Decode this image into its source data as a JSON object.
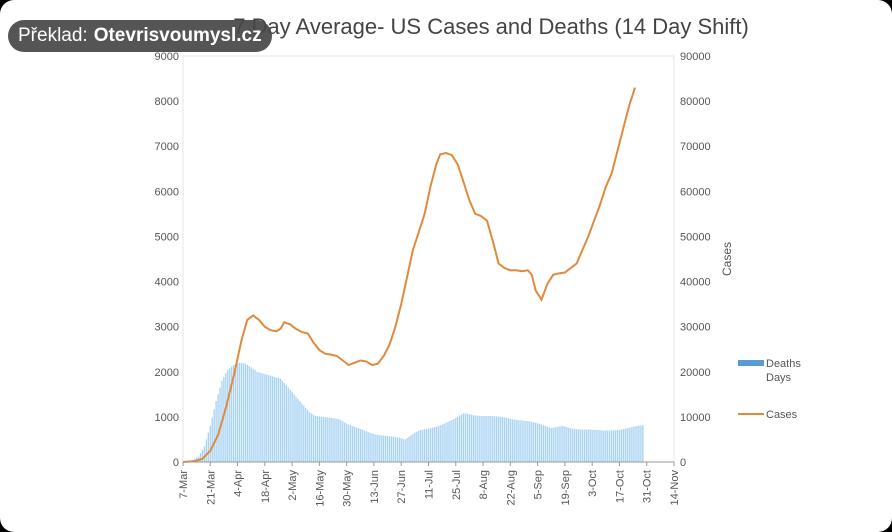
{
  "overlay": {
    "prefix": "Překlad:",
    "site": "Otevrisvoumysl.cz"
  },
  "colors": {
    "cases_line": "#e08a3c",
    "deaths_bars": "#a9d3f2",
    "legend_deaths": "#5b9bd5",
    "grid": "#dddddd"
  },
  "chart_data": {
    "type": "bar+line",
    "title": "7 Day Average- US Cases and Deaths (14 Day Shift)",
    "y_left": {
      "min": 0,
      "max": 9000,
      "step": 1000,
      "ticks": [
        "0",
        "1000",
        "2000",
        "3000",
        "4000",
        "5000",
        "6000",
        "7000",
        "8000",
        "9000"
      ]
    },
    "y_right": {
      "label": "Cases",
      "min": 0,
      "max": 90000,
      "step": 10000,
      "ticks": [
        "0",
        "10000",
        "20000",
        "30000",
        "40000",
        "50000",
        "60000",
        "70000",
        "80000",
        "90000"
      ]
    },
    "x_ticks": [
      "7-Mar",
      "21-Mar",
      "4-Apr",
      "18-Apr",
      "2-May",
      "16-May",
      "30-May",
      "13-Jun",
      "27-Jun",
      "11-Jul",
      "25-Jul",
      "8-Aug",
      "22-Aug",
      "5-Sep",
      "19-Sep",
      "3-Oct",
      "17-Oct",
      "31-Oct",
      "14-Nov"
    ],
    "x_range_days": [
      0,
      252
    ],
    "legend": [
      {
        "label": "Deaths",
        "sub": "Days",
        "kind": "bar"
      },
      {
        "label": "Cases",
        "kind": "line"
      }
    ],
    "series": [
      {
        "name": "Deaths",
        "axis": "left",
        "kind": "bar",
        "points": [
          [
            0,
            5
          ],
          [
            4,
            20
          ],
          [
            8,
            120
          ],
          [
            11,
            350
          ],
          [
            14,
            800
          ],
          [
            17,
            1350
          ],
          [
            20,
            1800
          ],
          [
            23,
            2050
          ],
          [
            26,
            2150
          ],
          [
            29,
            2200
          ],
          [
            32,
            2180
          ],
          [
            35,
            2100
          ],
          [
            38,
            2000
          ],
          [
            42,
            1950
          ],
          [
            46,
            1900
          ],
          [
            50,
            1850
          ],
          [
            53,
            1700
          ],
          [
            56,
            1550
          ],
          [
            59,
            1400
          ],
          [
            62,
            1250
          ],
          [
            65,
            1100
          ],
          [
            68,
            1020
          ],
          [
            72,
            1000
          ],
          [
            76,
            980
          ],
          [
            80,
            950
          ],
          [
            84,
            850
          ],
          [
            88,
            780
          ],
          [
            92,
            720
          ],
          [
            96,
            650
          ],
          [
            100,
            600
          ],
          [
            104,
            580
          ],
          [
            108,
            560
          ],
          [
            111,
            540
          ],
          [
            114,
            500
          ],
          [
            116,
            560
          ],
          [
            119,
            650
          ],
          [
            122,
            710
          ],
          [
            126,
            740
          ],
          [
            130,
            780
          ],
          [
            134,
            850
          ],
          [
            138,
            930
          ],
          [
            141,
            1000
          ],
          [
            144,
            1080
          ],
          [
            147,
            1060
          ],
          [
            150,
            1030
          ],
          [
            154,
            1020
          ],
          [
            158,
            1020
          ],
          [
            162,
            1010
          ],
          [
            166,
            980
          ],
          [
            170,
            940
          ],
          [
            174,
            920
          ],
          [
            178,
            900
          ],
          [
            182,
            860
          ],
          [
            186,
            800
          ],
          [
            189,
            750
          ],
          [
            192,
            780
          ],
          [
            195,
            800
          ],
          [
            198,
            760
          ],
          [
            201,
            730
          ],
          [
            204,
            720
          ],
          [
            208,
            720
          ],
          [
            212,
            710
          ],
          [
            216,
            700
          ],
          [
            220,
            700
          ],
          [
            224,
            710
          ],
          [
            228,
            750
          ],
          [
            232,
            790
          ],
          [
            236,
            820
          ]
        ]
      },
      {
        "name": "Cases",
        "axis": "right",
        "kind": "line",
        "points": [
          [
            0,
            0
          ],
          [
            6,
            200
          ],
          [
            10,
            700
          ],
          [
            14,
            2500
          ],
          [
            18,
            6000
          ],
          [
            22,
            12000
          ],
          [
            26,
            19000
          ],
          [
            30,
            27000
          ],
          [
            33,
            31500
          ],
          [
            36,
            32500
          ],
          [
            39,
            31500
          ],
          [
            42,
            30000
          ],
          [
            45,
            29200
          ],
          [
            48,
            29000
          ],
          [
            50,
            29500
          ],
          [
            52,
            31000
          ],
          [
            55,
            30500
          ],
          [
            58,
            29500
          ],
          [
            61,
            28800
          ],
          [
            64,
            28500
          ],
          [
            67,
            26500
          ],
          [
            70,
            24800
          ],
          [
            73,
            24000
          ],
          [
            76,
            23800
          ],
          [
            79,
            23500
          ],
          [
            82,
            22500
          ],
          [
            85,
            21500
          ],
          [
            88,
            22000
          ],
          [
            91,
            22500
          ],
          [
            94,
            22300
          ],
          [
            97,
            21500
          ],
          [
            100,
            21800
          ],
          [
            103,
            23500
          ],
          [
            106,
            26000
          ],
          [
            109,
            30000
          ],
          [
            112,
            35000
          ],
          [
            115,
            41000
          ],
          [
            118,
            47000
          ],
          [
            121,
            51000
          ],
          [
            124,
            55000
          ],
          [
            127,
            61000
          ],
          [
            130,
            66000
          ],
          [
            132,
            68200
          ],
          [
            135,
            68500
          ],
          [
            138,
            68000
          ],
          [
            141,
            66000
          ],
          [
            144,
            62000
          ],
          [
            147,
            58000
          ],
          [
            150,
            55000
          ],
          [
            153,
            54500
          ],
          [
            156,
            53500
          ],
          [
            159,
            49000
          ],
          [
            162,
            44000
          ],
          [
            165,
            43000
          ],
          [
            168,
            42500
          ],
          [
            171,
            42500
          ],
          [
            174,
            42300
          ],
          [
            177,
            42500
          ],
          [
            179,
            41500
          ],
          [
            181,
            38000
          ],
          [
            184,
            36000
          ],
          [
            187,
            39500
          ],
          [
            190,
            41500
          ],
          [
            193,
            41800
          ],
          [
            196,
            42000
          ],
          [
            199,
            43000
          ],
          [
            202,
            44000
          ],
          [
            205,
            47000
          ],
          [
            208,
            50000
          ],
          [
            211,
            53500
          ],
          [
            214,
            57000
          ],
          [
            217,
            61000
          ],
          [
            220,
            64000
          ],
          [
            223,
            69000
          ],
          [
            226,
            74000
          ],
          [
            229,
            79000
          ],
          [
            232,
            83000
          ]
        ]
      }
    ]
  }
}
